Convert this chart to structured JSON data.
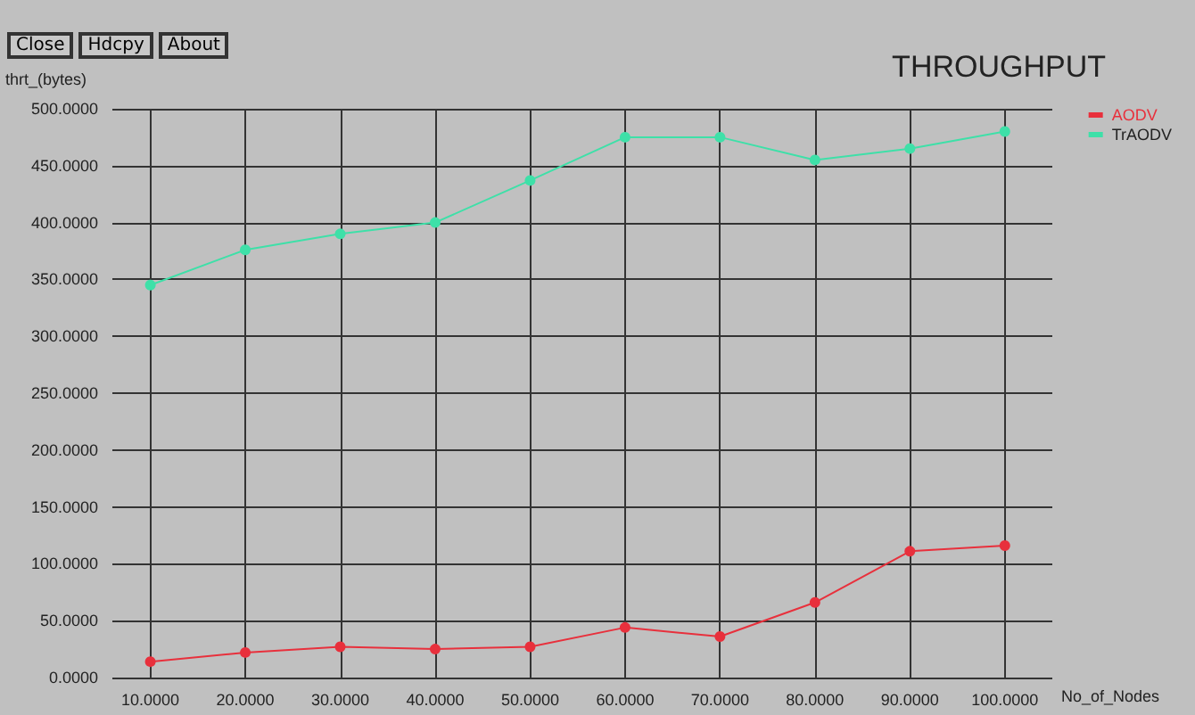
{
  "chart_data": {
    "type": "line",
    "title": "THROUGHPUT",
    "xlabel": "No_of_Nodes",
    "ylabel": "thrt_(bytes)",
    "annotations": [
      "Close",
      "Hdcpy",
      "About"
    ],
    "x": [
      10,
      20,
      30,
      40,
      50,
      60,
      70,
      80,
      90,
      100
    ],
    "series": [
      {
        "name": "AODV",
        "color": "#e8303c",
        "values": [
          14,
          22,
          27,
          25,
          27,
          44,
          36,
          66,
          111,
          116
        ]
      },
      {
        "name": "TrAODV",
        "color": "#3ee0a8",
        "values": [
          345,
          376,
          390,
          400,
          437,
          475,
          475,
          455,
          465,
          480
        ]
      }
    ],
    "xlim": [
      6,
      105
    ],
    "xticks": [
      {
        "value": 10,
        "label": "10.0000"
      },
      {
        "value": 20,
        "label": "20.0000"
      },
      {
        "value": 30,
        "label": "30.0000"
      },
      {
        "value": 40,
        "label": "40.0000"
      },
      {
        "value": 50,
        "label": "50.0000"
      },
      {
        "value": 60,
        "label": "60.0000"
      },
      {
        "value": 70,
        "label": "70.0000"
      },
      {
        "value": 80,
        "label": "80.0000"
      },
      {
        "value": 90,
        "label": "90.0000"
      },
      {
        "value": 100,
        "label": "100.0000"
      }
    ],
    "ylim": [
      0,
      500
    ],
    "yticks": [
      {
        "value": 0,
        "label": "0.0000"
      },
      {
        "value": 50,
        "label": "50.0000"
      },
      {
        "value": 100,
        "label": "100.0000"
      },
      {
        "value": 150,
        "label": "150.0000"
      },
      {
        "value": 200,
        "label": "200.0000"
      },
      {
        "value": 250,
        "label": "250.0000"
      },
      {
        "value": 300,
        "label": "300.0000"
      },
      {
        "value": 350,
        "label": "350.0000"
      },
      {
        "value": 400,
        "label": "400.0000"
      },
      {
        "value": 450,
        "label": "450.0000"
      },
      {
        "value": 500,
        "label": "500.0000"
      }
    ],
    "grid": true,
    "legend": "top right",
    "marker": "circle",
    "line_style": "solid"
  }
}
